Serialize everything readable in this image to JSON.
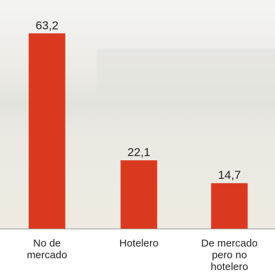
{
  "chart_data": {
    "type": "bar",
    "categories": [
      "No de mercado",
      "Hotelero",
      "De mercado pero no hotelero"
    ],
    "values": [
      63.2,
      22.1,
      14.7
    ],
    "value_labels": [
      "63,2",
      "22,1",
      "14,7"
    ],
    "color": "#d93a1f",
    "ylim": [
      0,
      74
    ]
  }
}
